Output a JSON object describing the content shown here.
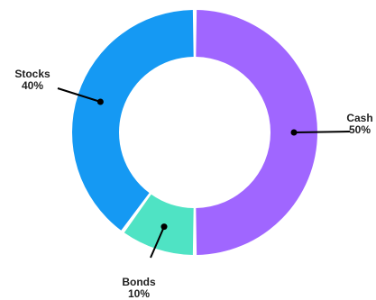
{
  "chart_data": {
    "type": "pie",
    "style": "donut",
    "title": "",
    "slices": [
      {
        "name": "Cash",
        "value": 50,
        "value_label": "50%",
        "color": "#a066ff"
      },
      {
        "name": "Bonds",
        "value": 10,
        "value_label": "10%",
        "color": "#4fe3c4"
      },
      {
        "name": "Stocks",
        "value": 40,
        "value_label": "40%",
        "color": "#1599f3"
      }
    ]
  }
}
